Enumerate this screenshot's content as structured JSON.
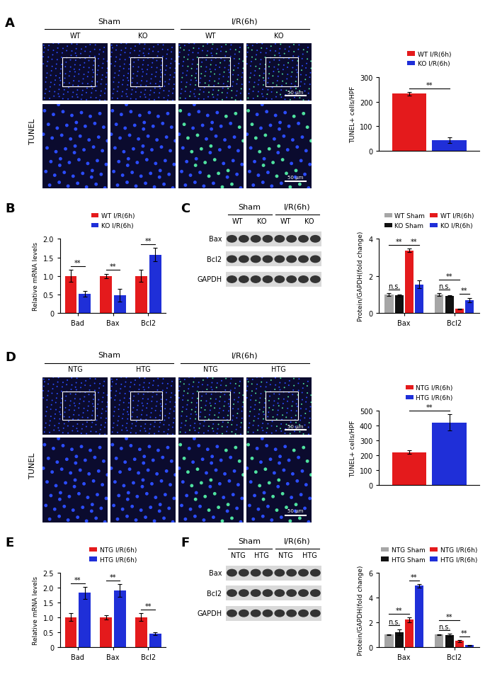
{
  "chart_data": [
    {
      "type": "bar",
      "categories": [
        null
      ],
      "ylabel": "TUNEL+ cells/HPF",
      "ylim": [
        0,
        300
      ],
      "yticks": [
        0,
        100,
        200,
        300
      ],
      "legend": "top",
      "series": [
        {
          "name": "WT I/R(6h)",
          "color": "#e41a1c",
          "values": [
            232
          ],
          "errors": [
            7
          ]
        },
        {
          "name": "KO I/R(6h)",
          "color": "#1f2fd8",
          "values": [
            45
          ],
          "errors": [
            12
          ]
        }
      ],
      "significance": [
        {
          "category": null,
          "pair": [
            "WT I/R(6h)",
            "KO I/R(6h)"
          ],
          "text": "**"
        }
      ]
    },
    {
      "type": "bar",
      "panel": "B",
      "categories": [
        "Bad",
        "Bax",
        "Bcl2"
      ],
      "ylabel": "Relative mRNA levels",
      "ylim": [
        0,
        2
      ],
      "yticks": [
        0,
        0.5,
        {
          "value": 1,
          "label": "1.0"
        },
        1.5,
        {
          "value": 2,
          "label": "2.0"
        }
      ],
      "legend": "top",
      "series": [
        {
          "name": "WT I/R(6h)",
          "color": "#e41a1c",
          "values": [
            1.0,
            1.0,
            1.0
          ],
          "errors": [
            0.16,
            0.06,
            0.16
          ]
        },
        {
          "name": "KO I/R(6h)",
          "color": "#1f2fd8",
          "values": [
            0.52,
            0.48,
            1.57
          ],
          "errors": [
            0.08,
            0.17,
            0.18
          ]
        }
      ],
      "significance": [
        {
          "category": "Bad",
          "pair": [
            "WT I/R(6h)",
            "KO I/R(6h)"
          ],
          "text": "**"
        },
        {
          "category": "Bax",
          "pair": [
            "WT I/R(6h)",
            "KO I/R(6h)"
          ],
          "text": "**"
        },
        {
          "category": "Bcl2",
          "pair": [
            "WT I/R(6h)",
            "KO I/R(6h)"
          ],
          "text": "**"
        }
      ]
    },
    {
      "type": "bar",
      "categories": [
        "Bax",
        "Bcl2"
      ],
      "ylabel": "Protein/GAPDH(fold change)",
      "ylim": [
        0,
        4
      ],
      "yticks": [
        0,
        2,
        4
      ],
      "legend": "top",
      "series": [
        {
          "name": "WT Sham",
          "color": "#a6a6a6",
          "values": [
            1.0,
            1.0
          ],
          "errors": [
            0.06,
            0.08
          ]
        },
        {
          "name": "KO Sham",
          "color": "#111111",
          "values": [
            0.95,
            0.93
          ],
          "errors": [
            0.05,
            0.04
          ]
        },
        {
          "name": "WT I/R(6h)",
          "color": "#e41a1c",
          "values": [
            3.38,
            0.22
          ],
          "errors": [
            0.1,
            0.03
          ]
        },
        {
          "name": "KO I/R(6h)",
          "color": "#1f2fd8",
          "values": [
            1.55,
            0.7
          ],
          "errors": [
            0.2,
            0.12
          ]
        }
      ],
      "significance": [
        {
          "category": "Bax",
          "pair": [
            "WT Sham",
            "KO Sham"
          ],
          "text": "n.s."
        },
        {
          "category": "Bax",
          "pair": [
            "WT I/R(6h)",
            "KO I/R(6h)"
          ],
          "text": "**"
        },
        {
          "category": "Bax",
          "pair": [
            "WT Sham",
            "WT I/R(6h)"
          ],
          "text": "**"
        },
        {
          "category": "Bcl2",
          "pair": [
            "WT Sham",
            "KO Sham"
          ],
          "text": "n.s."
        },
        {
          "category": "Bcl2",
          "pair": [
            "WT I/R(6h)",
            "KO I/R(6h)"
          ],
          "text": "**"
        },
        {
          "category": "Bcl2",
          "pair": [
            "WT Sham",
            "WT I/R(6h)"
          ],
          "text": "**"
        }
      ]
    },
    {
      "type": "bar",
      "categories": [
        null
      ],
      "ylabel": "TUNEL+ cells/HPF",
      "ylim": [
        0,
        500
      ],
      "yticks": [
        0,
        100,
        200,
        300,
        400,
        500
      ],
      "legend": "top",
      "series": [
        {
          "name": "NTG I/R(6h)",
          "color": "#e41a1c",
          "values": [
            222
          ],
          "errors": [
            12
          ]
        },
        {
          "name": "HTG I/R(6h)",
          "color": "#1f2fd8",
          "values": [
            422
          ],
          "errors": [
            55
          ]
        }
      ],
      "significance": [
        {
          "category": null,
          "pair": [
            "NTG I/R(6h)",
            "HTG I/R(6h)"
          ],
          "text": "**"
        }
      ]
    },
    {
      "type": "bar",
      "panel": "E",
      "categories": [
        "Bad",
        "Bax",
        "Bcl2"
      ],
      "ylabel": "Relative mRNA levels",
      "ylim": [
        0,
        2.5
      ],
      "yticks": [
        0,
        0.5,
        {
          "value": 1,
          "label": "1.0"
        },
        1.5,
        {
          "value": 2,
          "label": "2.0"
        },
        2.5
      ],
      "legend": "top",
      "series": [
        {
          "name": "NTG I/R(6h)",
          "color": "#e41a1c",
          "values": [
            1.0,
            1.0,
            1.0
          ],
          "errors": [
            0.13,
            0.08,
            0.13
          ]
        },
        {
          "name": "HTG I/R(6h)",
          "color": "#1f2fd8",
          "values": [
            1.83,
            1.9,
            0.45
          ],
          "errors": [
            0.2,
            0.22,
            0.04
          ]
        }
      ],
      "significance": [
        {
          "category": "Bad",
          "pair": [
            "NTG I/R(6h)",
            "HTG I/R(6h)"
          ],
          "text": "**"
        },
        {
          "category": "Bax",
          "pair": [
            "NTG I/R(6h)",
            "HTG I/R(6h)"
          ],
          "text": "**"
        },
        {
          "category": "Bcl2",
          "pair": [
            "NTG I/R(6h)",
            "HTG I/R(6h)"
          ],
          "text": "**"
        }
      ]
    },
    {
      "type": "bar",
      "categories": [
        "Bax",
        "Bcl2"
      ],
      "ylabel": "Protein/GAPDH(fold change)",
      "ylim": [
        0,
        6
      ],
      "yticks": [
        0,
        2,
        4,
        6
      ],
      "legend": "top",
      "series": [
        {
          "name": "NTG Sham",
          "color": "#a6a6a6",
          "values": [
            1.0,
            1.0
          ],
          "errors": [
            0.03,
            0.05
          ]
        },
        {
          "name": "HTG Sham",
          "color": "#111111",
          "values": [
            1.2,
            0.95
          ],
          "errors": [
            0.25,
            0.12
          ]
        },
        {
          "name": "NTG I/R(6h)",
          "color": "#e41a1c",
          "values": [
            2.2,
            0.48
          ],
          "errors": [
            0.2,
            0.08
          ]
        },
        {
          "name": "HTG I/R(6h)",
          "color": "#1f2fd8",
          "values": [
            4.95,
            0.15
          ],
          "errors": [
            0.15,
            0.03
          ]
        }
      ],
      "significance": [
        {
          "category": "Bax",
          "pair": [
            "NTG Sham",
            "HTG Sham"
          ],
          "text": "n.s."
        },
        {
          "category": "Bax",
          "pair": [
            "NTG I/R(6h)",
            "HTG I/R(6h)"
          ],
          "text": "**"
        },
        {
          "category": "Bax",
          "pair": [
            "NTG Sham",
            "NTG I/R(6h)"
          ],
          "text": "**"
        },
        {
          "category": "Bcl2",
          "pair": [
            "NTG Sham",
            "HTG Sham"
          ],
          "text": "n.s."
        },
        {
          "category": "Bcl2",
          "pair": [
            "NTG I/R(6h)",
            "HTG I/R(6h)"
          ],
          "text": "**"
        },
        {
          "category": "Bcl2",
          "pair": [
            "NTG Sham",
            "NTG I/R(6h)"
          ],
          "text": "**"
        }
      ]
    }
  ],
  "image_panels": [
    {
      "panel": "A",
      "stain": "TUNEL",
      "scale_bar": "50 μm",
      "groups": [
        {
          "label": "Sham",
          "columns": [
            "WT",
            "KO"
          ]
        },
        {
          "label": "I/R(6h)",
          "columns": [
            "WT",
            "KO"
          ]
        }
      ]
    },
    {
      "panel": "D",
      "stain": "TUNEL",
      "scale_bar": "50 μm",
      "groups": [
        {
          "label": "Sham",
          "columns": [
            "NTG",
            "HTG"
          ]
        },
        {
          "label": "I/R(6h)",
          "columns": [
            "NTG",
            "HTG"
          ]
        }
      ]
    }
  ],
  "blots": [
    {
      "panel": "C",
      "rows": [
        "Bax",
        "Bcl2",
        "GAPDH"
      ],
      "groups": [
        {
          "label": "Sham",
          "columns": [
            "WT",
            "KO"
          ]
        },
        {
          "label": "I/R(6h)",
          "columns": [
            "WT",
            "KO"
          ]
        }
      ]
    },
    {
      "panel": "F",
      "rows": [
        "Bax",
        "Bcl2",
        "GAPDH"
      ],
      "groups": [
        {
          "label": "Sham",
          "columns": [
            "NTG",
            "HTG"
          ]
        },
        {
          "label": "I/R(6h)",
          "columns": [
            "NTG",
            "HTG"
          ]
        }
      ]
    }
  ]
}
